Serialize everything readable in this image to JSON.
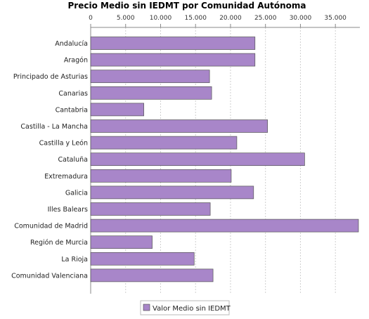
{
  "chart_data": {
    "type": "bar",
    "orientation": "horizontal",
    "title": "Precio Medio sin IEDMT por Comunidad Autónoma",
    "xlabel": "",
    "ylabel": "",
    "xlim": [
      0,
      38500
    ],
    "x_ticks": [
      0,
      5000,
      10000,
      15000,
      20000,
      25000,
      30000,
      35000
    ],
    "x_tick_labels": [
      "0",
      "5.000",
      "10.000",
      "15.000",
      "20.000",
      "25.000",
      "30.000",
      "35.000"
    ],
    "tick_position": "top",
    "grid": true,
    "legend_position": "bottom",
    "categories": [
      "Andalucía",
      "Aragón",
      "Principado de Asturias",
      "Canarias",
      "Cantabria",
      "Castilla - La Mancha",
      "Castilla y León",
      "Cataluña",
      "Extremadura",
      "Galicia",
      "Illes Balears",
      "Comunidad de Madrid",
      "Región de Murcia",
      "La Rioja",
      "Comunidad Valenciana"
    ],
    "series": [
      {
        "name": "Valor Medio sin IEDMT",
        "color": "#a886c9",
        "values": [
          23500,
          23500,
          17000,
          17300,
          7600,
          25300,
          20900,
          30600,
          20100,
          23300,
          17100,
          38300,
          8800,
          14800,
          17500
        ]
      }
    ]
  }
}
